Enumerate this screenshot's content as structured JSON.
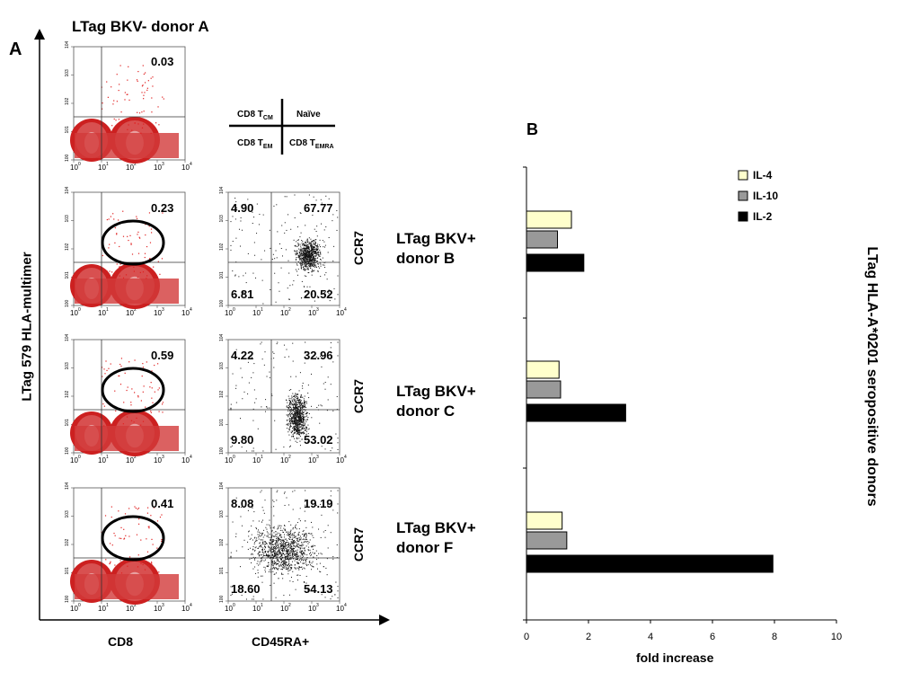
{
  "panel_a": {
    "letter": "A",
    "title": "LTag BKV- donor A",
    "y_axis_label": "LTag 579 HLA-multimer",
    "x_axis_label_left": "CD8",
    "x_axis_label_right": "CD45RA+",
    "tick_labels": [
      "10",
      "10",
      "10",
      "10",
      "10"
    ],
    "tick_exponents": [
      "0",
      "1",
      "2",
      "3",
      "4"
    ],
    "legend_quadrants": {
      "top_left": "CD8 T",
      "top_left_sub": "CM",
      "top_right": "Naïve",
      "bottom_left": "CD8 T",
      "bottom_left_sub": "EM",
      "bottom_right": "CD8 T",
      "bottom_right_sub": "EMRA"
    },
    "rows": [
      {
        "multimer_pct": "0.03",
        "donor": null
      },
      {
        "multimer_pct": "0.23",
        "ccr7_label": "CCR7",
        "donor_line1": "LTag BKV+",
        "donor_line2": "donor B",
        "quadrants": {
          "tl": "4.90",
          "tr": "67.77",
          "bl": "6.81",
          "br": "20.52"
        }
      },
      {
        "multimer_pct": "0.59",
        "ccr7_label": "CCR7",
        "donor_line1": "LTag BKV+",
        "donor_line2": "donor C",
        "quadrants": {
          "tl": "4.22",
          "tr": "32.96",
          "bl": "9.80",
          "br": "53.02"
        }
      },
      {
        "multimer_pct": "0.41",
        "ccr7_label": "CCR7",
        "donor_line1": "LTag BKV+",
        "donor_line2": "donor F",
        "quadrants": {
          "tl": "8.08",
          "tr": "19.19",
          "bl": "18.60",
          "br": "54.13"
        }
      }
    ]
  },
  "panel_b": {
    "letter": "B",
    "side_label": "LTag HLA-A*0201 seropositive donors"
  },
  "chart_data": {
    "type": "bar",
    "orientation": "horizontal",
    "categories": [
      "donor B",
      "donor C",
      "donor F"
    ],
    "series": [
      {
        "name": "IL-4",
        "color": "#ffffcc",
        "values": [
          1.45,
          1.05,
          1.15
        ]
      },
      {
        "name": "IL-10",
        "color": "#999999",
        "values": [
          1.0,
          1.1,
          1.3
        ]
      },
      {
        "name": "IL-2",
        "color": "#000000",
        "values": [
          1.85,
          3.2,
          7.95
        ]
      }
    ],
    "xlabel": "fold increase",
    "xlim": [
      0,
      10
    ],
    "xticks": [
      "0",
      "2",
      "4",
      "6",
      "8",
      "10"
    ],
    "legend_position": "top-right",
    "grid": false
  }
}
